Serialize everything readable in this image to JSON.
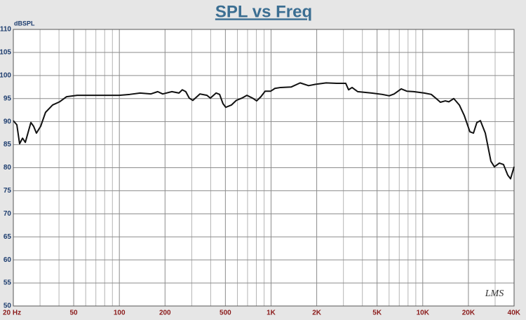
{
  "chart_data": {
    "type": "line",
    "title": "SPL vs Freq",
    "y_label": "dBSPL",
    "annotation": "LMS",
    "log_x": true,
    "grid": true,
    "xlim": [
      20,
      40000
    ],
    "ylim": [
      50,
      110
    ],
    "xticks": [
      {
        "value": 20,
        "label": "20 Hz"
      },
      50,
      100,
      200,
      500,
      {
        "value": 1000,
        "label": "1K"
      },
      {
        "value": 2000,
        "label": "2K"
      },
      {
        "value": 5000,
        "label": "5K"
      },
      {
        "value": 10000,
        "label": "10K"
      },
      {
        "value": 20000,
        "label": "20K"
      },
      {
        "value": 40000,
        "label": "40K"
      }
    ],
    "xgrid": [
      30,
      40,
      60,
      70,
      80,
      90,
      300,
      400,
      600,
      700,
      800,
      900,
      3000,
      4000,
      6000,
      7000,
      8000,
      9000,
      30000
    ],
    "yticks": [
      50,
      55,
      60,
      65,
      70,
      75,
      80,
      85,
      90,
      95,
      100,
      105,
      110
    ],
    "x": [
      20,
      21.1,
      22,
      23,
      24,
      26.1,
      27.2,
      28.4,
      30.3,
      32.6,
      36.3,
      40.4,
      44.9,
      52.7,
      65.2,
      80.6,
      99.8,
      117,
      137,
      161,
      179,
      193,
      222,
      247,
      260,
      274,
      289,
      305,
      340,
      378,
      398,
      434,
      458,
      482,
      503,
      548,
      590,
      643,
      693,
      755,
      804,
      857,
      914,
      995,
      1060,
      1155,
      1355,
      1556,
      1767,
      1967,
      2307,
      2706,
      3107,
      3244,
      3420,
      3725,
      4605,
      5406,
      6010,
      6477,
      7213,
      7852,
      8730,
      10240,
      11380,
      12270,
      13070,
      14090,
      14860,
      16010,
      17430,
      18790,
      20460,
      21590,
      22740,
      24000,
      25850,
      28140,
      29670,
      31990,
      34050,
      36330,
      37920,
      40000
    ],
    "series": [
      {
        "name": "SPL",
        "color": "#111111",
        "values": [
          90.2,
          89.3,
          85.2,
          86.4,
          85.5,
          89.8,
          89.0,
          87.5,
          89.0,
          92.0,
          93.6,
          94.3,
          95.4,
          95.7,
          95.7,
          95.7,
          95.7,
          95.9,
          96.2,
          96.0,
          96.5,
          96.0,
          96.5,
          96.2,
          96.9,
          96.5,
          95.1,
          94.6,
          96.0,
          95.7,
          95.1,
          96.2,
          95.9,
          93.9,
          93.1,
          93.6,
          94.6,
          95.1,
          95.7,
          95.1,
          94.5,
          95.4,
          96.6,
          96.6,
          97.2,
          97.4,
          97.5,
          98.4,
          97.8,
          98.1,
          98.4,
          98.3,
          98.3,
          96.9,
          97.4,
          96.5,
          96.2,
          95.9,
          95.6,
          96.0,
          97.1,
          96.6,
          96.5,
          96.2,
          95.9,
          95.0,
          94.2,
          94.5,
          94.3,
          95.0,
          93.6,
          91.3,
          87.8,
          87.5,
          89.8,
          90.2,
          87.5,
          81.4,
          80.2,
          81.0,
          80.7,
          78.4,
          77.6,
          80.2
        ]
      }
    ]
  }
}
